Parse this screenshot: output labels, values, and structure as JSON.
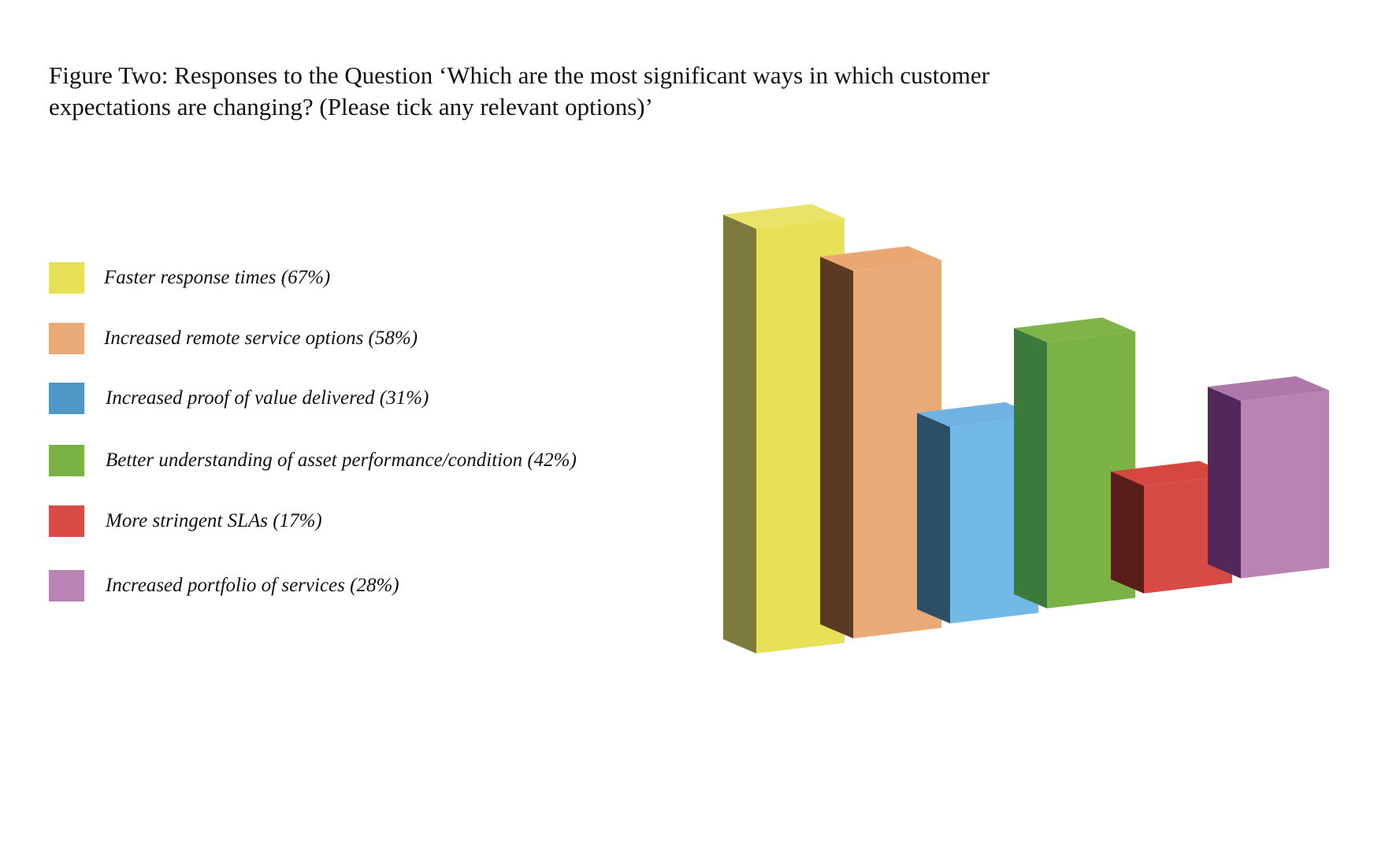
{
  "title": "Figure Two: Responses to the Question ‘Which are the most significant ways in which customer expectations are changing? (Please tick any relevant options)’",
  "chart_data": {
    "type": "bar",
    "categories": [
      "Faster response times (67%)",
      "Increased remote service options (58%)",
      "Increased proof of value delivered (31%)",
      "Better understanding of asset performance/condition (42%)",
      "More stringent SLAs (17%)",
      "Increased portfolio of services (28%)"
    ],
    "values": [
      67,
      58,
      31,
      42,
      17,
      28
    ],
    "units": "%",
    "colors": [
      "#E6E157",
      "#E9AA78",
      "#73B9E6",
      "#7BB244",
      "#D84B44",
      "#B983B4"
    ],
    "legend_colors": [
      "#E6E157",
      "#E9AA78",
      "#4F97C7",
      "#7BB244",
      "#D84B44",
      "#B983B4"
    ],
    "side_colors": [
      "#7C7B3D",
      "#5A3A22",
      "#2B4F66",
      "#3A7A3A",
      "#5A1E1A",
      "#52275A"
    ],
    "top_colors": [
      "#E9E468",
      "#EAA772",
      "#6FB3E3",
      "#7FB548",
      "#D6473F",
      "#AF78AB"
    ],
    "axes_visible": false,
    "grid": false,
    "legend_position": "left",
    "style": "3d"
  }
}
